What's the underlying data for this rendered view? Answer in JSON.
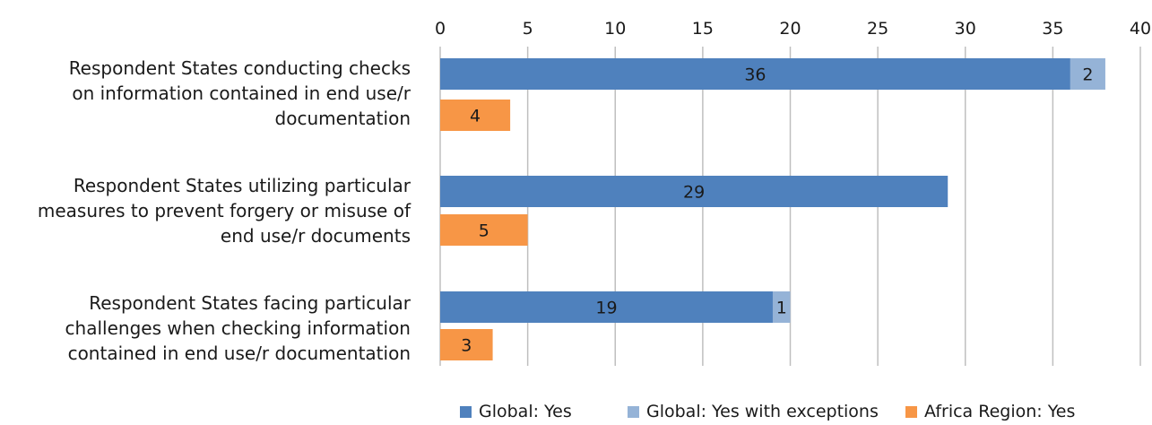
{
  "chart_data": {
    "type": "bar",
    "orientation": "horizontal",
    "stacked": true,
    "title": "",
    "xlabel": "",
    "ylabel": "",
    "xlim": [
      0,
      40
    ],
    "xticks": [
      0,
      5,
      10,
      15,
      20,
      25,
      30,
      35,
      40
    ],
    "x_axis_position": "top",
    "grid": true,
    "legend_position": "bottom",
    "categories": [
      "Respondent States conducting checks on information contained in end use/r documentation",
      "Respondent States utilizing particular measures to prevent forgery or misuse of end use/r documents",
      "Respondent States facing particular challenges when checking information contained in end use/r documentation"
    ],
    "category_lines": [
      [
        "Respondent States conducting checks",
        "on information contained in end use/r",
        "documentation"
      ],
      [
        "Respondent States utilizing particular",
        "measures to prevent forgery or misuse of",
        "end use/r documents"
      ],
      [
        "Respondent States facing particular",
        "challenges when checking information",
        "contained in end use/r documentation"
      ]
    ],
    "series": [
      {
        "name": "Global: Yes",
        "values": [
          36,
          29,
          19
        ],
        "color": "#4f81bd",
        "group": "global"
      },
      {
        "name": "Global: Yes with exceptions",
        "values": [
          2,
          0,
          1
        ],
        "color": "#95b3d7",
        "group": "global"
      },
      {
        "name": "Africa Region: Yes",
        "values": [
          4,
          5,
          3
        ],
        "color": "#f79646",
        "group": "africa"
      }
    ],
    "data_labels": {
      "Global: Yes": [
        "36",
        "29",
        "19"
      ],
      "Global: Yes with exceptions": [
        "2",
        "",
        "1"
      ],
      "Africa Region: Yes": [
        "4",
        "5",
        "3"
      ]
    }
  }
}
